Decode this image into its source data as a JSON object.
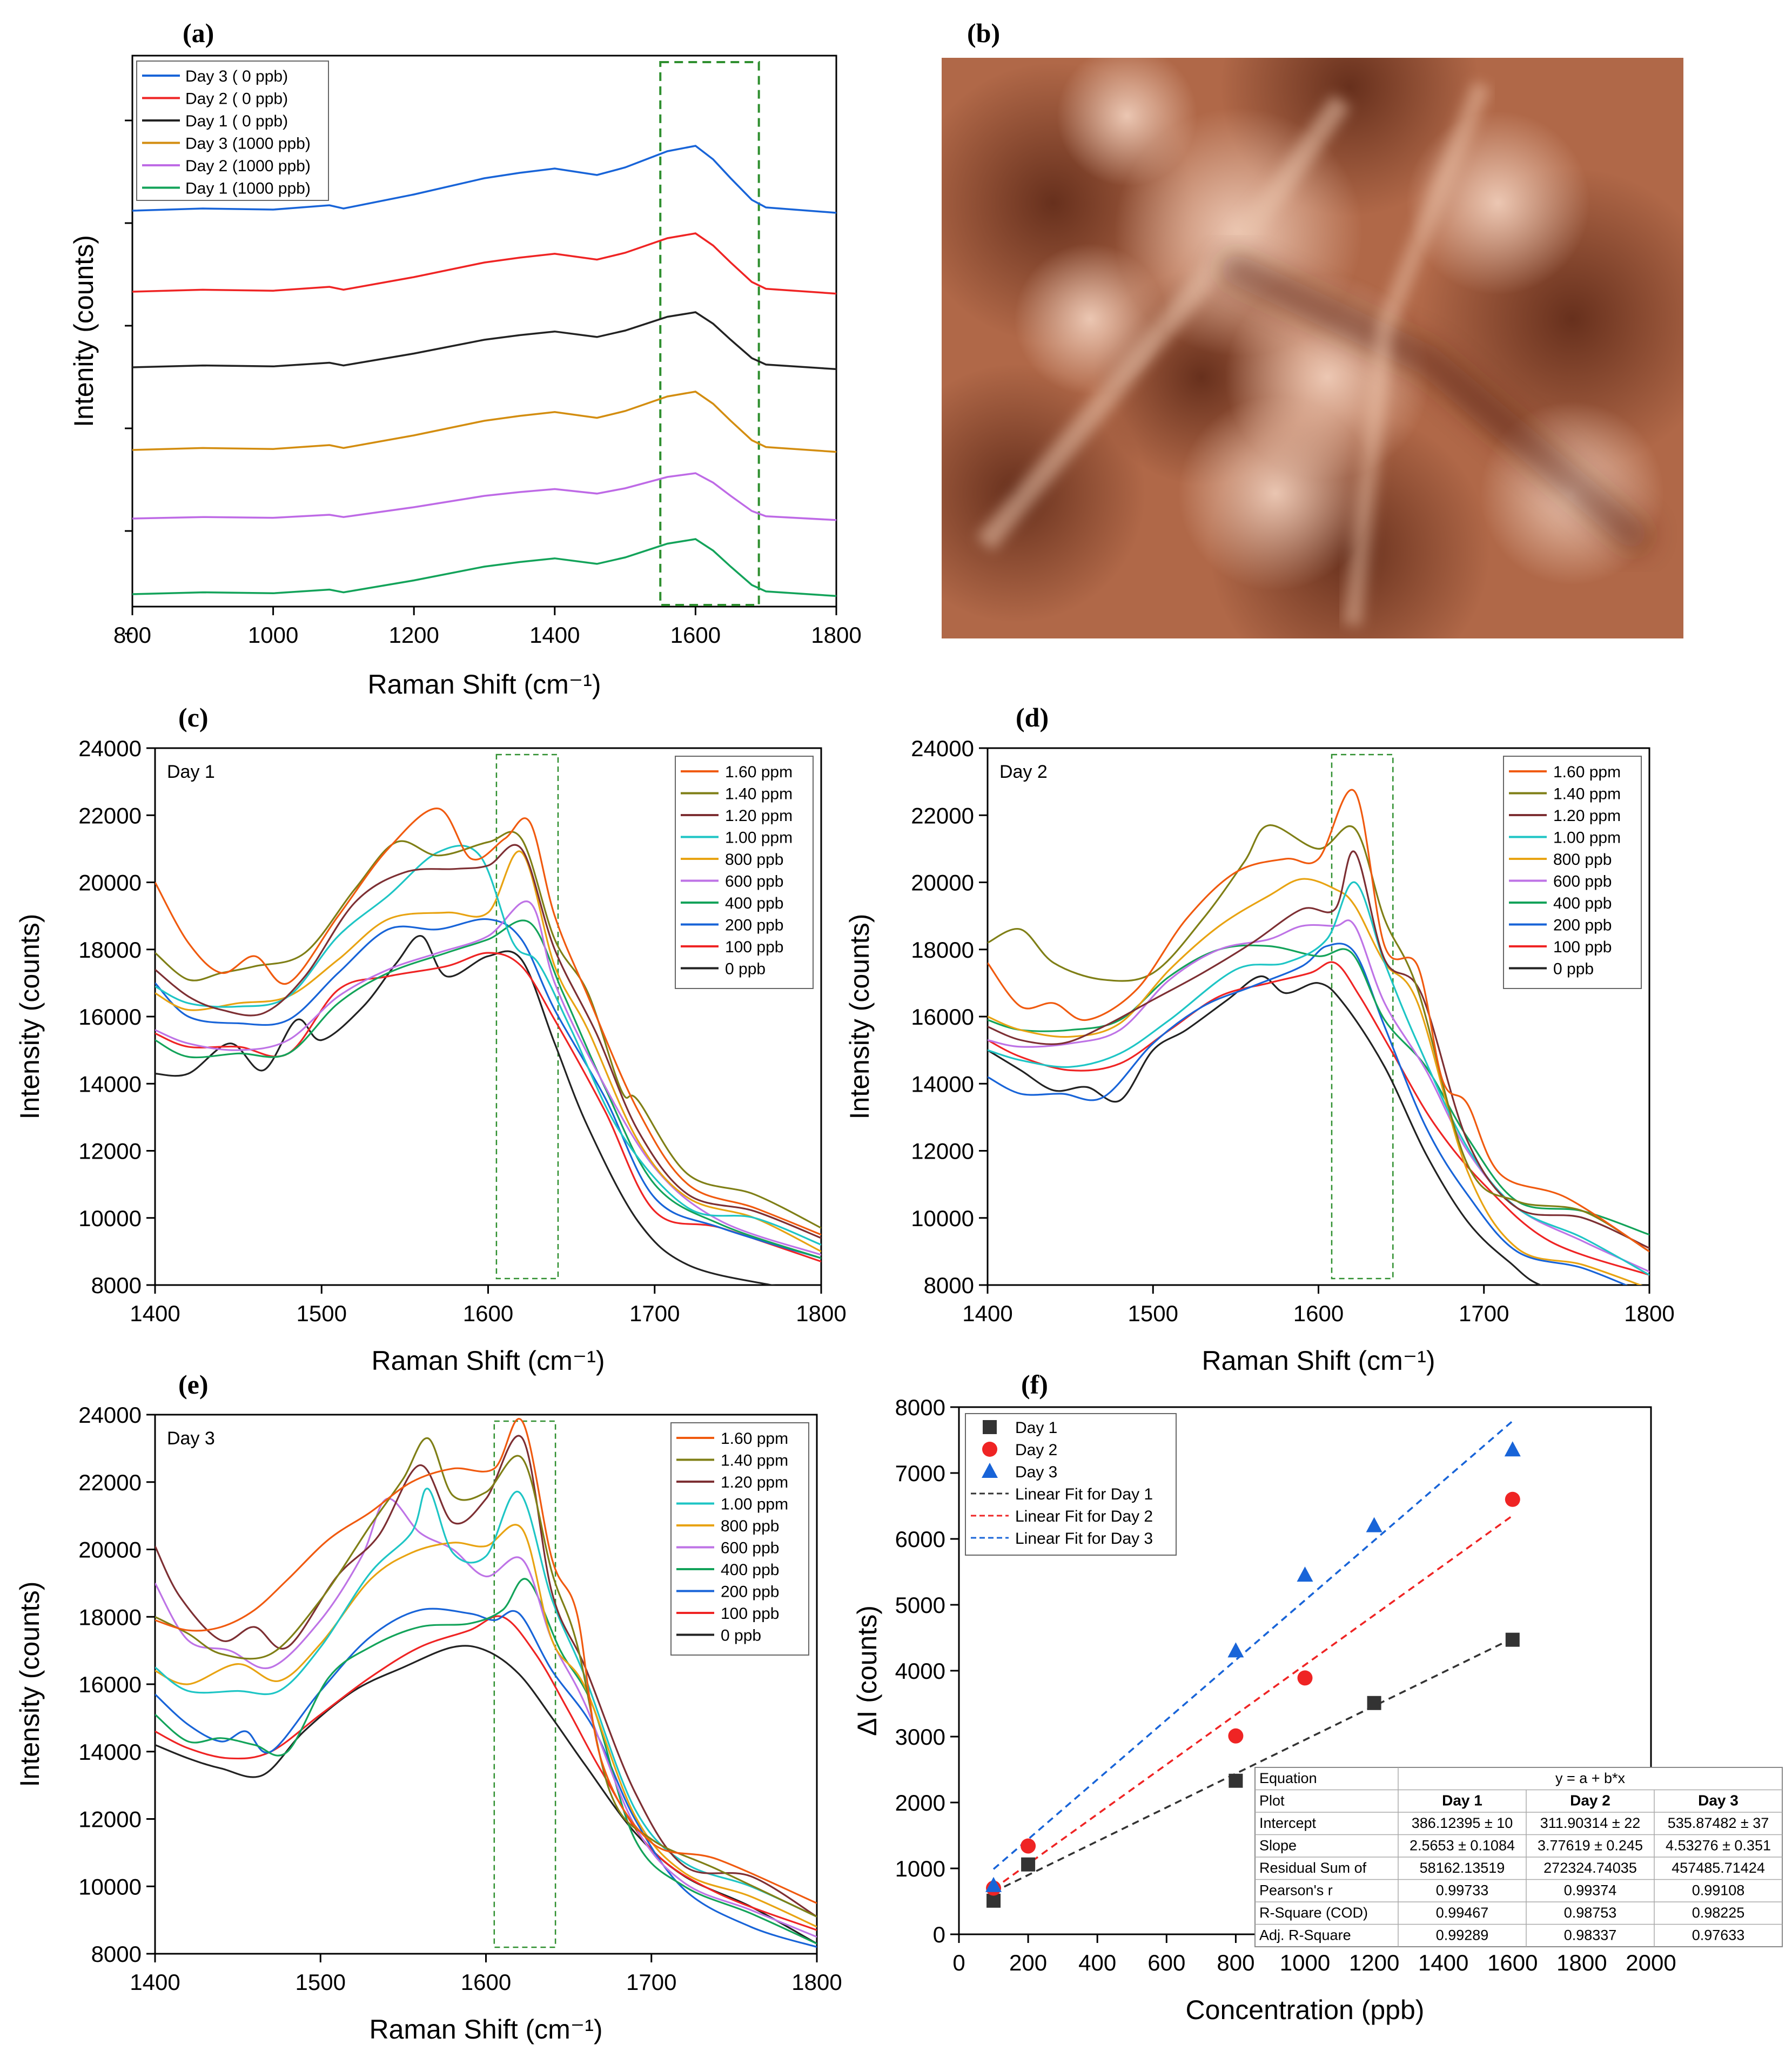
{
  "colors": {
    "conc": [
      "#f05a0f",
      "#7f7f16",
      "#7d2f33",
      "#1ec5c5",
      "#e8a312",
      "#be73e6",
      "#13a35a",
      "#1864d8",
      "#ef2424",
      "#222222"
    ],
    "days": [
      "#333333",
      "#ef2424",
      "#1864d8"
    ],
    "panel_a": [
      "#1864d8",
      "#ef2424",
      "#222222",
      "#d38d10",
      "#be6ae6",
      "#13a35a"
    ],
    "box": "#2f8f2f"
  },
  "chart_data": [
    {
      "panel": "(a)",
      "type": "line",
      "xlabel": "Raman Shift (cm⁻¹)",
      "ylabel": "Intenity (counts)",
      "xlim": [
        800,
        1800
      ],
      "xticks": [
        "800",
        "1000",
        "1200",
        "1400",
        "1600",
        "1800"
      ],
      "highlight_range": [
        1550,
        1690
      ],
      "legend": [
        "Day 3 ( 0 ppb)",
        "Day 2 ( 0 ppb)",
        "Day 1 ( 0 ppb)",
        "Day 3 (1000 ppb)",
        "Day 2 (1000 ppb)",
        "Day 1 (1000 ppb)"
      ]
    },
    {
      "panel": "(b)",
      "type": "image",
      "description_label": "(b)"
    },
    {
      "panel": "(c)",
      "type": "line",
      "inset_label": "Day 1",
      "xlabel": "Raman Shift (cm⁻¹)",
      "ylabel": "Intensity (counts)",
      "xlim": [
        1400,
        1800
      ],
      "ylim": [
        8000,
        24000
      ],
      "xticks": [
        "1400",
        "1500",
        "1600",
        "1700",
        "1800"
      ],
      "yticks": [
        "8000",
        "10000",
        "12000",
        "14000",
        "16000",
        "18000",
        "20000",
        "22000",
        "24000"
      ],
      "highlight_range": [
        1605,
        1642
      ],
      "legend": [
        "1.60 ppm",
        "1.40 ppm",
        "1.20 ppm",
        "1.00 ppm",
        "800 ppb",
        "600 ppb",
        "400 ppb",
        "200 ppb",
        "100 ppb",
        "0 ppb"
      ]
    },
    {
      "panel": "(d)",
      "type": "line",
      "inset_label": "Day 2",
      "xlabel": "Raman Shift (cm⁻¹)",
      "ylabel": "Intensity (counts)",
      "xlim": [
        1400,
        1800
      ],
      "ylim": [
        8000,
        24000
      ],
      "xticks": [
        "1400",
        "1500",
        "1600",
        "1700",
        "1800"
      ],
      "yticks": [
        "8000",
        "10000",
        "12000",
        "14000",
        "16000",
        "18000",
        "20000",
        "22000",
        "24000"
      ],
      "highlight_range": [
        1608,
        1645
      ],
      "legend": [
        "1.60 ppm",
        "1.40 ppm",
        "1.20 ppm",
        "1.00 ppm",
        "800 ppb",
        "600 ppb",
        "400 ppb",
        "200 ppb",
        "100 ppb",
        "0 ppb"
      ]
    },
    {
      "panel": "(e)",
      "type": "line",
      "inset_label": "Day 3",
      "xlabel": "Raman Shift (cm⁻¹)",
      "ylabel": "Intensity (counts)",
      "xlim": [
        1400,
        1800
      ],
      "ylim": [
        8000,
        24000
      ],
      "xticks": [
        "1400",
        "1500",
        "1600",
        "1700",
        "1800"
      ],
      "yticks": [
        "8000",
        "10000",
        "12000",
        "14000",
        "16000",
        "18000",
        "20000",
        "22000",
        "24000"
      ],
      "highlight_range": [
        1605,
        1642
      ],
      "legend": [
        "1.60 ppm",
        "1.40 ppm",
        "1.20 ppm",
        "1.00 ppm",
        "800 ppb",
        "600 ppb",
        "400 ppb",
        "200 ppb",
        "100 ppb",
        "0 ppb"
      ]
    },
    {
      "panel": "(f)",
      "type": "scatter",
      "xlabel": "Concentration (ppb)",
      "ylabel": "ΔI (counts)",
      "xlim": [
        0,
        2000
      ],
      "ylim": [
        0,
        8000
      ],
      "xticks": [
        "0",
        "200",
        "400",
        "600",
        "800",
        "1000",
        "1200",
        "1400",
        "1600",
        "1800",
        "2000"
      ],
      "yticks": [
        "0",
        "1000",
        "2000",
        "3000",
        "4000",
        "5000",
        "6000",
        "7000",
        "8000"
      ],
      "x": [
        100,
        200,
        800,
        1000,
        1200,
        1600
      ],
      "series": [
        {
          "name": "Day 1",
          "marker": "square",
          "x": [
            100,
            200,
            800,
            1200,
            1600
          ],
          "values": [
            510,
            1060,
            2330,
            3510,
            4470
          ]
        },
        {
          "name": "Day 2",
          "marker": "circle",
          "x": [
            100,
            200,
            800,
            1000,
            1600
          ],
          "values": [
            700,
            1340,
            3010,
            3890,
            6600
          ]
        },
        {
          "name": "Day 3",
          "marker": "triangle",
          "x": [
            100,
            800,
            1000,
            1200,
            1600
          ],
          "values": [
            740,
            4300,
            5450,
            6200,
            7350
          ]
        }
      ],
      "fits": [
        {
          "name": "Linear Fit for Day 1",
          "intercept": 386.12395,
          "slope": 2.5653
        },
        {
          "name": "Linear Fit for Day 2",
          "intercept": 311.90314,
          "slope": 3.77619
        },
        {
          "name": "Linear Fit for Day 3",
          "intercept": 535.87482,
          "slope": 4.53276
        }
      ],
      "legend": [
        "Day 1",
        "Day 2",
        "Day 3",
        "Linear Fit for Day 1",
        "Linear Fit for Day 2",
        "Linear Fit for Day 3"
      ],
      "table": {
        "rows": [
          [
            "Equation",
            "y = a + b*x"
          ],
          [
            "Plot",
            "Day 1",
            "Day 2",
            "Day 3"
          ],
          [
            "Intercept",
            "386.12395 ± 10",
            "311.90314 ± 22",
            "535.87482 ± 37"
          ],
          [
            "Slope",
            "2.5653 ± 0.1084",
            "3.77619 ± 0.245",
            "4.53276 ± 0.351"
          ],
          [
            "Residual Sum of",
            "58162.13519",
            "272324.74035",
            "457485.71424"
          ],
          [
            "Pearson's r",
            "0.99733",
            "0.99374",
            "0.99108"
          ],
          [
            "R-Square (COD)",
            "0.99467",
            "0.98753",
            "0.98225"
          ],
          [
            "Adj. R-Square",
            "0.99289",
            "0.98337",
            "0.97633"
          ]
        ]
      }
    }
  ]
}
